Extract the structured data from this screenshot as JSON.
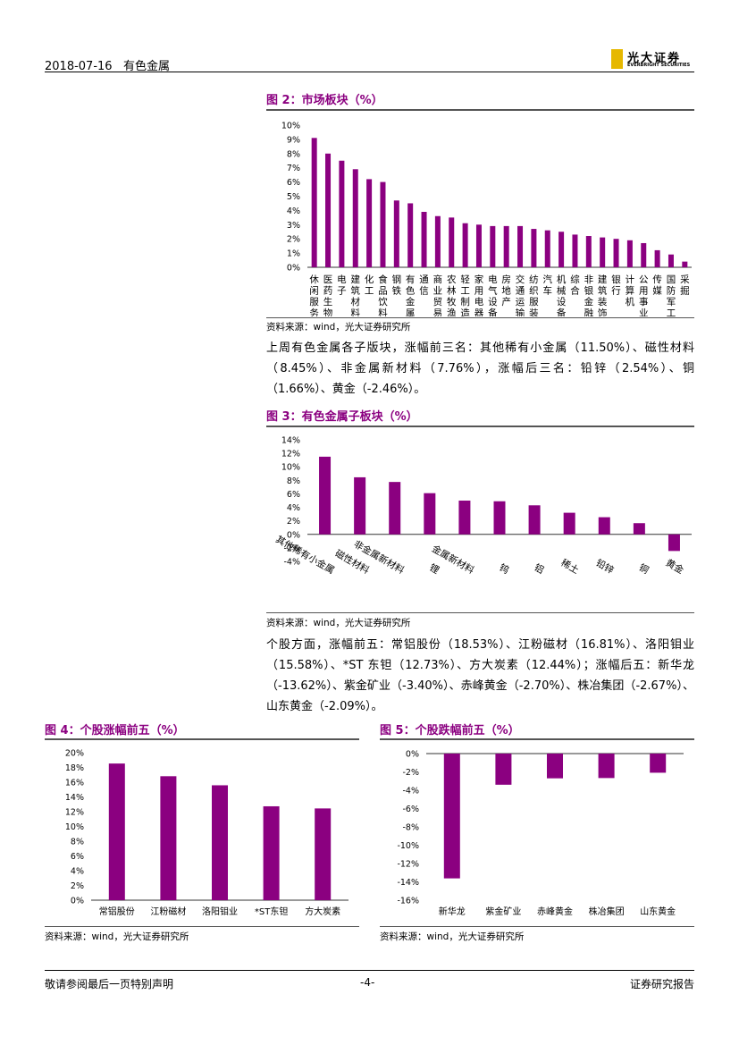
{
  "header": {
    "date": "2018-07-16",
    "sector": "有色金属",
    "logo_cn": "光大证券",
    "logo_en": "EVERBRIGHT SECURITIES"
  },
  "fig2": {
    "title": "图 2：市场板块（%）",
    "source": "资料来源：wind，光大证券研究所"
  },
  "para1": "上周有色金属各子版块，涨幅前三名：其他稀有小金属（11.50%）、磁性材料（8.45%）、非金属新材料（7.76%），涨幅后三名：铅锌（2.54%）、铜（1.66%）、黄金（-2.46%）。",
  "fig3": {
    "title": "图 3：有色金属子板块（%）",
    "source": "资料来源：wind，光大证券研究所"
  },
  "para2": "个股方面，涨幅前五：常铝股份（18.53%）、江粉磁材（16.81%）、洛阳钼业（15.58%）、*ST 东钽（12.73%）、方大炭素（12.44%）；涨幅后五：新华龙（-13.62%）、紫金矿业（-3.40%）、赤峰黄金（-2.70%）、株冶集团（-2.67%）、山东黄金（-2.09%）。",
  "fig4": {
    "title": "图 4：个股涨幅前五（%）",
    "source": "资料来源：wind，光大证券研究所"
  },
  "fig5": {
    "title": "图 5：个股跌幅前五（%）",
    "source": "资料来源：wind，光大证券研究所"
  },
  "footer": {
    "left": "敬请参阅最后一页特别声明",
    "page": "-4-",
    "right": "证券研究报告"
  },
  "chart_data": [
    {
      "id": "fig2",
      "type": "bar",
      "color": "#8b0080",
      "categories": [
        "休闲服务",
        "医药生物",
        "电子",
        "建筑材料",
        "化工",
        "食品饮料",
        "钢铁",
        "有色金属",
        "通信",
        "商业贸易",
        "农林牧渔",
        "轻工制造",
        "家用电器",
        "电气设备",
        "房地产",
        "交通运输",
        "纺织服装",
        "汽车",
        "机械设备",
        "综合",
        "非银金融",
        "建筑装饰",
        "银行",
        "计算机",
        "公用事业",
        "传媒",
        "国防军工",
        "采掘"
      ],
      "values": [
        9.1,
        8.0,
        7.5,
        6.9,
        6.2,
        6.0,
        4.7,
        4.5,
        3.9,
        3.6,
        3.5,
        3.1,
        3.0,
        2.9,
        2.9,
        2.9,
        2.7,
        2.6,
        2.5,
        2.3,
        2.2,
        2.1,
        2.0,
        1.9,
        1.7,
        1.2,
        0.9,
        0.4
      ],
      "yticks": [
        "0%",
        "1%",
        "2%",
        "3%",
        "4%",
        "5%",
        "6%",
        "7%",
        "8%",
        "9%",
        "10%"
      ],
      "ylim": [
        0,
        10
      ]
    },
    {
      "id": "fig3",
      "type": "bar",
      "color": "#8b0080",
      "categories": [
        "其他稀有小金属",
        "磁性材料",
        "非金属新材料",
        "锂",
        "金属新材料",
        "钨",
        "铝",
        "稀土",
        "铅锌",
        "铜",
        "黄金"
      ],
      "values": [
        11.5,
        8.45,
        7.76,
        6.1,
        5.0,
        4.9,
        4.3,
        3.2,
        2.54,
        1.66,
        -2.46
      ],
      "yticks": [
        "-4%",
        "-2%",
        "0%",
        "2%",
        "4%",
        "6%",
        "8%",
        "10%",
        "12%",
        "14%"
      ],
      "ylim": [
        -4,
        14
      ]
    },
    {
      "id": "fig4",
      "type": "bar",
      "color": "#8b0080",
      "categories": [
        "常铝股份",
        "江粉磁材",
        "洛阳钼业",
        "*ST东钽",
        "方大炭素"
      ],
      "values": [
        18.53,
        16.81,
        15.58,
        12.73,
        12.44
      ],
      "yticks": [
        "0%",
        "2%",
        "4%",
        "6%",
        "8%",
        "10%",
        "12%",
        "14%",
        "16%",
        "18%",
        "20%"
      ],
      "ylim": [
        0,
        20
      ]
    },
    {
      "id": "fig5",
      "type": "bar",
      "color": "#8b0080",
      "categories": [
        "新华龙",
        "紫金矿业",
        "赤峰黄金",
        "株冶集团",
        "山东黄金"
      ],
      "values": [
        -13.62,
        -3.4,
        -2.7,
        -2.67,
        -2.09
      ],
      "yticks": [
        "-16%",
        "-14%",
        "-12%",
        "-10%",
        "-8%",
        "-6%",
        "-4%",
        "-2%",
        "0%"
      ],
      "ylim": [
        -16,
        0
      ]
    }
  ]
}
